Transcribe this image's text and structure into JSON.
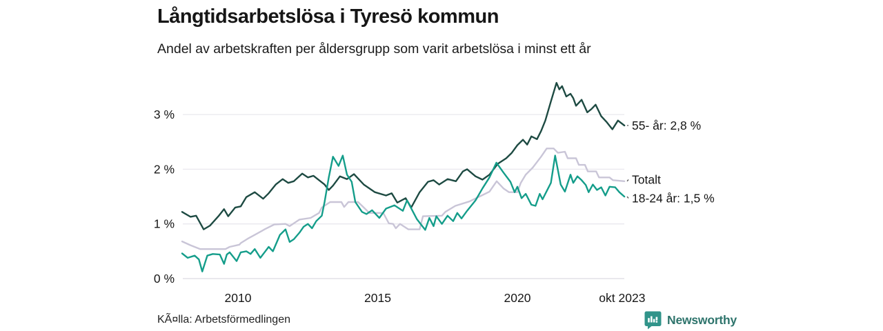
{
  "header": {
    "title": "Långtidsarbetslösa i Tyresö kommun",
    "subtitle": "Andel av arbetskraften per åldersgrupp som varit arbetslösa i minst ett år"
  },
  "footer": {
    "source": "KÃ¤lla: Arbetsförmedlingen",
    "brand": "Newsworthy"
  },
  "colors": {
    "text": "#161616",
    "grid": "#e9e8ee",
    "grid_zero": "#dcdbe2",
    "leader": "#555555",
    "brand_icon": "#31948a",
    "brand_text": "#2e746c",
    "series_55": "#1d4a42",
    "series_total": "#c9c5d7",
    "series_18_24": "#149d8a"
  },
  "chart_data": {
    "type": "line",
    "title": "Långtidsarbetslösa i Tyresö kommun",
    "subtitle": "Andel av arbetskraften per åldersgrupp som varit arbetslösa i minst ett år",
    "source": "KÃ¤lla: Arbetsförmedlingen",
    "unit": "%",
    "x_axis": {
      "range": [
        2008.0,
        2023.83
      ],
      "ticks": [
        {
          "label": "2010",
          "year": 2010
        },
        {
          "label": "2015",
          "year": 2015
        },
        {
          "label": "2020",
          "year": 2020
        },
        {
          "label": "okt 2023",
          "year": 2023.75
        }
      ],
      "grid": false
    },
    "y_axis": {
      "range": [
        0,
        3.7
      ],
      "ticks": [
        {
          "label": "0 %",
          "value": 0
        },
        {
          "label": "1 %",
          "value": 1
        },
        {
          "label": "2 %",
          "value": 2
        },
        {
          "label": "3 %",
          "value": 3
        }
      ],
      "grid": true
    },
    "legend_position": "end-of-line-labels",
    "series": [
      {
        "name": "Totalt",
        "color_key": "series_total",
        "end_label": "Totalt",
        "end_value": 1.78,
        "points": [
          [
            2008.0,
            0.68
          ],
          [
            2008.3,
            0.61
          ],
          [
            2008.65,
            0.54
          ],
          [
            2009.55,
            0.54
          ],
          [
            2009.7,
            0.58
          ],
          [
            2010.05,
            0.62
          ],
          [
            2010.1,
            0.65
          ],
          [
            2010.35,
            0.73
          ],
          [
            2010.6,
            0.8
          ],
          [
            2010.95,
            0.9
          ],
          [
            2011.3,
            0.99
          ],
          [
            2011.7,
            1.0
          ],
          [
            2011.85,
            0.96
          ],
          [
            2012.2,
            1.08
          ],
          [
            2012.6,
            1.11
          ],
          [
            2012.9,
            1.2
          ],
          [
            2013.0,
            1.3
          ],
          [
            2013.3,
            1.4
          ],
          [
            2013.7,
            1.4
          ],
          [
            2013.8,
            1.31
          ],
          [
            2013.95,
            1.4
          ],
          [
            2014.3,
            1.4
          ],
          [
            2014.5,
            1.3
          ],
          [
            2014.7,
            1.2
          ],
          [
            2015.2,
            1.2
          ],
          [
            2015.4,
            1.01
          ],
          [
            2015.55,
            1.0
          ],
          [
            2015.65,
            0.92
          ],
          [
            2015.8,
            1.0
          ],
          [
            2016.1,
            0.9
          ],
          [
            2016.5,
            0.9
          ],
          [
            2016.62,
            1.14
          ],
          [
            2017.3,
            1.15
          ],
          [
            2017.42,
            1.22
          ],
          [
            2017.78,
            1.33
          ],
          [
            2018.28,
            1.41
          ],
          [
            2018.72,
            1.52
          ],
          [
            2019.0,
            1.59
          ],
          [
            2019.26,
            1.78
          ],
          [
            2019.5,
            1.65
          ],
          [
            2019.7,
            1.58
          ],
          [
            2020.0,
            1.58
          ],
          [
            2020.12,
            1.75
          ],
          [
            2020.3,
            1.9
          ],
          [
            2020.55,
            2.03
          ],
          [
            2020.85,
            2.23
          ],
          [
            2021.05,
            2.38
          ],
          [
            2021.3,
            2.38
          ],
          [
            2021.45,
            2.3
          ],
          [
            2021.7,
            2.32
          ],
          [
            2021.8,
            2.2
          ],
          [
            2022.1,
            2.2
          ],
          [
            2022.2,
            2.08
          ],
          [
            2022.42,
            2.08
          ],
          [
            2022.52,
            1.96
          ],
          [
            2022.82,
            1.96
          ],
          [
            2022.92,
            1.85
          ],
          [
            2023.3,
            1.85
          ],
          [
            2023.42,
            1.8
          ],
          [
            2023.83,
            1.78
          ]
        ]
      },
      {
        "name": "55- år",
        "color_key": "series_55",
        "end_label": "55- år: 2,8 %",
        "end_value": 2.8,
        "points": [
          [
            2008.0,
            1.22
          ],
          [
            2008.3,
            1.13
          ],
          [
            2008.5,
            1.15
          ],
          [
            2008.77,
            0.9
          ],
          [
            2009.0,
            0.97
          ],
          [
            2009.3,
            1.14
          ],
          [
            2009.5,
            1.27
          ],
          [
            2009.65,
            1.14
          ],
          [
            2009.9,
            1.3
          ],
          [
            2010.1,
            1.32
          ],
          [
            2010.3,
            1.49
          ],
          [
            2010.6,
            1.58
          ],
          [
            2010.9,
            1.46
          ],
          [
            2011.1,
            1.56
          ],
          [
            2011.35,
            1.72
          ],
          [
            2011.6,
            1.82
          ],
          [
            2011.8,
            1.75
          ],
          [
            2012.0,
            1.78
          ],
          [
            2012.3,
            1.92
          ],
          [
            2012.5,
            1.85
          ],
          [
            2012.7,
            1.88
          ],
          [
            2012.9,
            1.8
          ],
          [
            2013.1,
            1.72
          ],
          [
            2013.25,
            1.62
          ],
          [
            2013.4,
            1.7
          ],
          [
            2013.65,
            1.87
          ],
          [
            2013.9,
            1.82
          ],
          [
            2014.15,
            1.91
          ],
          [
            2014.5,
            1.72
          ],
          [
            2014.9,
            1.58
          ],
          [
            2015.3,
            1.52
          ],
          [
            2015.5,
            1.56
          ],
          [
            2015.7,
            1.39
          ],
          [
            2016.0,
            1.47
          ],
          [
            2016.2,
            1.3
          ],
          [
            2016.5,
            1.58
          ],
          [
            2016.8,
            1.77
          ],
          [
            2017.0,
            1.8
          ],
          [
            2017.2,
            1.72
          ],
          [
            2017.5,
            1.82
          ],
          [
            2017.8,
            1.78
          ],
          [
            2018.05,
            1.96
          ],
          [
            2018.2,
            2.0
          ],
          [
            2018.5,
            1.87
          ],
          [
            2018.75,
            1.81
          ],
          [
            2019.0,
            1.9
          ],
          [
            2019.3,
            2.1
          ],
          [
            2019.6,
            2.2
          ],
          [
            2019.8,
            2.3
          ],
          [
            2020.0,
            2.44
          ],
          [
            2020.2,
            2.54
          ],
          [
            2020.35,
            2.45
          ],
          [
            2020.5,
            2.6
          ],
          [
            2020.7,
            2.55
          ],
          [
            2020.85,
            2.7
          ],
          [
            2021.0,
            2.89
          ],
          [
            2021.2,
            3.24
          ],
          [
            2021.4,
            3.58
          ],
          [
            2021.5,
            3.46
          ],
          [
            2021.6,
            3.52
          ],
          [
            2021.75,
            3.33
          ],
          [
            2021.9,
            3.38
          ],
          [
            2022.0,
            3.3
          ],
          [
            2022.1,
            3.16
          ],
          [
            2022.3,
            3.27
          ],
          [
            2022.5,
            3.04
          ],
          [
            2022.65,
            3.1
          ],
          [
            2022.8,
            3.18
          ],
          [
            2023.0,
            2.97
          ],
          [
            2023.2,
            2.86
          ],
          [
            2023.4,
            2.73
          ],
          [
            2023.6,
            2.89
          ],
          [
            2023.83,
            2.8
          ]
        ]
      },
      {
        "name": "18-24 år",
        "color_key": "series_18_24",
        "end_label": "18-24 år: 1,5 %",
        "end_value": 1.5,
        "points": [
          [
            2008.0,
            0.46
          ],
          [
            2008.2,
            0.38
          ],
          [
            2008.45,
            0.42
          ],
          [
            2008.6,
            0.35
          ],
          [
            2008.72,
            0.13
          ],
          [
            2008.9,
            0.42
          ],
          [
            2009.1,
            0.45
          ],
          [
            2009.35,
            0.44
          ],
          [
            2009.5,
            0.27
          ],
          [
            2009.6,
            0.44
          ],
          [
            2009.7,
            0.48
          ],
          [
            2009.95,
            0.32
          ],
          [
            2010.1,
            0.48
          ],
          [
            2010.3,
            0.5
          ],
          [
            2010.45,
            0.45
          ],
          [
            2010.6,
            0.54
          ],
          [
            2010.8,
            0.38
          ],
          [
            2011.1,
            0.58
          ],
          [
            2011.25,
            0.5
          ],
          [
            2011.5,
            0.8
          ],
          [
            2011.7,
            0.9
          ],
          [
            2011.85,
            0.67
          ],
          [
            2012.0,
            0.72
          ],
          [
            2012.2,
            0.84
          ],
          [
            2012.35,
            0.95
          ],
          [
            2012.5,
            1.0
          ],
          [
            2012.65,
            0.92
          ],
          [
            2012.8,
            1.05
          ],
          [
            2013.0,
            1.15
          ],
          [
            2013.1,
            1.4
          ],
          [
            2013.25,
            1.85
          ],
          [
            2013.4,
            2.23
          ],
          [
            2013.6,
            2.06
          ],
          [
            2013.75,
            2.25
          ],
          [
            2013.9,
            1.9
          ],
          [
            2014.07,
            1.77
          ],
          [
            2014.2,
            1.4
          ],
          [
            2014.44,
            1.22
          ],
          [
            2014.6,
            1.18
          ],
          [
            2014.8,
            1.25
          ],
          [
            2015.06,
            1.11
          ],
          [
            2015.3,
            1.28
          ],
          [
            2015.6,
            1.34
          ],
          [
            2015.9,
            1.24
          ],
          [
            2016.05,
            1.43
          ],
          [
            2016.4,
            1.09
          ],
          [
            2016.7,
            0.89
          ],
          [
            2016.85,
            1.11
          ],
          [
            2017.0,
            0.96
          ],
          [
            2017.1,
            1.14
          ],
          [
            2017.3,
            1.0
          ],
          [
            2017.5,
            1.15
          ],
          [
            2017.7,
            1.05
          ],
          [
            2017.85,
            1.2
          ],
          [
            2018.0,
            1.1
          ],
          [
            2018.2,
            1.24
          ],
          [
            2018.5,
            1.43
          ],
          [
            2018.75,
            1.65
          ],
          [
            2019.0,
            1.85
          ],
          [
            2019.25,
            2.12
          ],
          [
            2019.5,
            1.94
          ],
          [
            2019.75,
            1.77
          ],
          [
            2019.9,
            1.58
          ],
          [
            2020.0,
            1.68
          ],
          [
            2020.15,
            1.47
          ],
          [
            2020.3,
            1.55
          ],
          [
            2020.5,
            1.35
          ],
          [
            2020.65,
            1.33
          ],
          [
            2020.8,
            1.55
          ],
          [
            2020.9,
            1.45
          ],
          [
            2021.0,
            1.55
          ],
          [
            2021.2,
            1.75
          ],
          [
            2021.35,
            2.25
          ],
          [
            2021.55,
            1.72
          ],
          [
            2021.7,
            1.59
          ],
          [
            2021.9,
            1.9
          ],
          [
            2022.0,
            1.75
          ],
          [
            2022.15,
            1.87
          ],
          [
            2022.3,
            1.8
          ],
          [
            2022.45,
            1.71
          ],
          [
            2022.55,
            1.58
          ],
          [
            2022.7,
            1.72
          ],
          [
            2022.85,
            1.62
          ],
          [
            2023.0,
            1.67
          ],
          [
            2023.15,
            1.52
          ],
          [
            2023.3,
            1.68
          ],
          [
            2023.5,
            1.67
          ],
          [
            2023.65,
            1.58
          ],
          [
            2023.83,
            1.5
          ]
        ]
      }
    ]
  }
}
